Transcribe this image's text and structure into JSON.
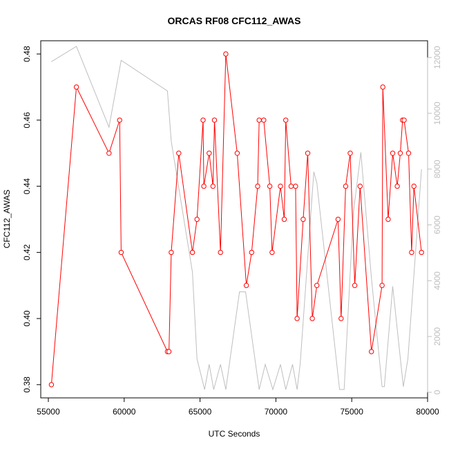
{
  "chart_data": {
    "type": "line",
    "title": "ORCAS RF08 CFC112_AWAS",
    "xlabel": "UTC Seconds",
    "ylabel": "CFC112_AWAS",
    "y2label": "",
    "xlim": [
      54500,
      80000
    ],
    "ylim": [
      0.376,
      0.484
    ],
    "y2lim": [
      -200,
      12600
    ],
    "x_ticks": [
      55000,
      60000,
      65000,
      70000,
      75000,
      80000
    ],
    "y_ticks": [
      0.38,
      0.4,
      0.42,
      0.44,
      0.46,
      0.48
    ],
    "y2_ticks": [
      0,
      2000,
      4000,
      6000,
      8000,
      10000,
      12000
    ],
    "colors": {
      "primary": "#ff0000",
      "secondary": "#bebebe",
      "axis": "#000000"
    },
    "series": [
      {
        "axis": "left",
        "style": "line-points",
        "color": "#ff0000",
        "x": [
          55200,
          56850,
          59000,
          59700,
          59800,
          62850,
          62950,
          63100,
          63600,
          64500,
          64800,
          65200,
          65250,
          65600,
          65850,
          65950,
          66350,
          66700,
          67450,
          68050,
          68400,
          68800,
          68900,
          69200,
          69600,
          69750,
          70300,
          70550,
          70650,
          71000,
          71300,
          71400,
          71800,
          72100,
          72400,
          72700,
          74100,
          74300,
          74600,
          74900,
          75200,
          75550,
          76300,
          77000,
          77050,
          77400,
          77700,
          78000,
          78200,
          78350,
          78450,
          78750,
          78950,
          79100,
          79600
        ],
        "y": [
          0.38,
          0.47,
          0.45,
          0.46,
          0.42,
          0.39,
          0.39,
          0.42,
          0.45,
          0.42,
          0.43,
          0.46,
          0.44,
          0.45,
          0.44,
          0.46,
          0.42,
          0.48,
          0.45,
          0.41,
          0.42,
          0.44,
          0.46,
          0.46,
          0.44,
          0.42,
          0.44,
          0.43,
          0.46,
          0.44,
          0.44,
          0.4,
          0.43,
          0.45,
          0.4,
          0.41,
          0.43,
          0.4,
          0.44,
          0.45,
          0.41,
          0.44,
          0.39,
          0.41,
          0.47,
          0.43,
          0.45,
          0.44,
          0.45,
          0.46,
          0.46,
          0.45,
          0.42,
          0.44,
          0.42
        ]
      },
      {
        "axis": "right",
        "style": "line",
        "color": "#bebebe",
        "x": [
          55200,
          56850,
          59000,
          59800,
          62850,
          63100,
          64500,
          64800,
          65300,
          65600,
          65900,
          66350,
          66700,
          67600,
          68000,
          68900,
          69300,
          69800,
          70300,
          70650,
          71100,
          71400,
          71600,
          72500,
          72700,
          74200,
          74500,
          75100,
          75600,
          76300,
          77000,
          77150,
          77700,
          78400,
          78700,
          79600
        ],
        "y": [
          11850,
          12400,
          9500,
          11900,
          10800,
          9000,
          4300,
          1200,
          100,
          1000,
          100,
          1000,
          100,
          3600,
          3600,
          100,
          1000,
          100,
          1000,
          100,
          1000,
          100,
          1000,
          7900,
          7500,
          100,
          100,
          6400,
          8600,
          4100,
          200,
          200,
          3800,
          200,
          1200,
          8000
        ]
      }
    ]
  }
}
